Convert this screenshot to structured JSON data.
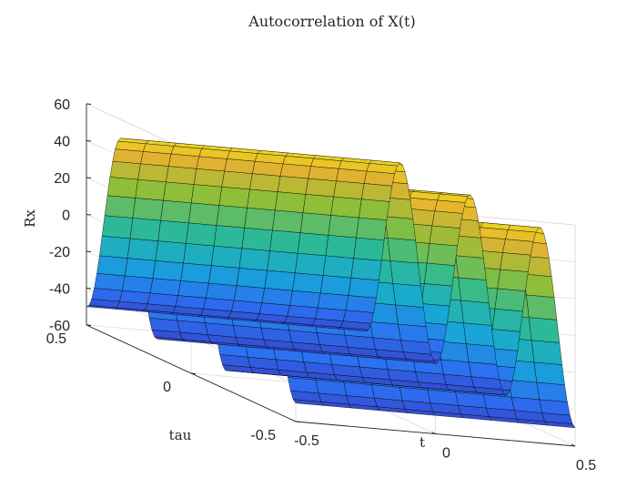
{
  "chart_data": {
    "type": "surface",
    "title": "Autocorrelation of X(t)",
    "xlabel": "t",
    "ylabel": "tau",
    "zlabel": "Rx",
    "xlim": [
      -0.5,
      0.5
    ],
    "ylim": [
      -0.5,
      0.5
    ],
    "zlim": [
      -60,
      60
    ],
    "x_ticks": [
      "-0.5",
      "0",
      "0.5"
    ],
    "y_ticks": [
      "-0.5",
      "0",
      "0.5"
    ],
    "z_ticks": [
      "-60",
      "-40",
      "-20",
      "0",
      "20",
      "40",
      "60"
    ],
    "grid": true,
    "colormap": "parula",
    "colormap_colors": [
      "#3e26a8",
      "#2c6ff2",
      "#16a8d6",
      "#2fbb91",
      "#8cbe3a",
      "#e3b231",
      "#f9fb0e"
    ],
    "edge_color": "#000000",
    "surface": {
      "expression": "Rx = 50 * cos(2*pi*3*tau)",
      "amplitude": 50,
      "frequency_cycles_per_unit_tau": 3,
      "x_samples": 11,
      "y_samples": 81
    }
  }
}
